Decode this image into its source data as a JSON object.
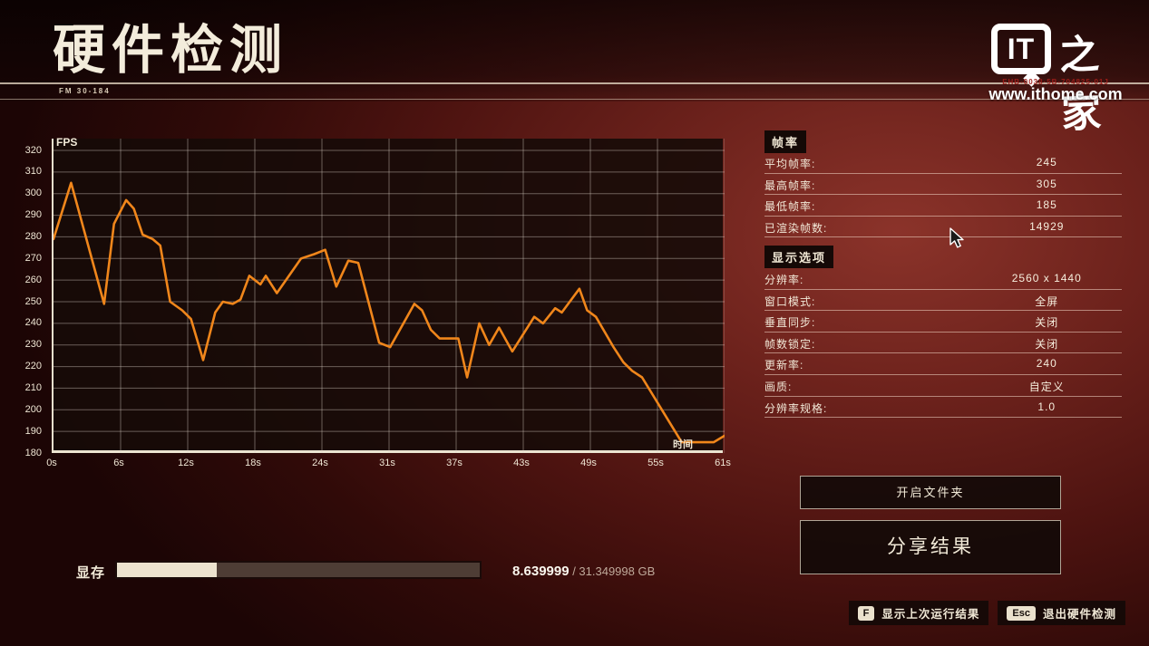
{
  "header": {
    "title": "硬件检测",
    "doc_code": "FM 30-184",
    "logo": {
      "badge": "IT",
      "suffix": "之家",
      "code": "EHB-0038·5B-704825-01J",
      "site": "www.ithome.com"
    }
  },
  "chart_data": {
    "type": "line",
    "ylabel": "FPS",
    "xlabel": "时间",
    "ylim": [
      180,
      320
    ],
    "x_range_seconds": [
      0,
      61
    ],
    "grid": true,
    "line_color": "#f0861b",
    "y_ticks": [
      320,
      310,
      300,
      290,
      280,
      270,
      260,
      250,
      240,
      230,
      220,
      210,
      200,
      190,
      180
    ],
    "x_ticks": [
      "0s",
      "6s",
      "12s",
      "18s",
      "24s",
      "31s",
      "37s",
      "43s",
      "49s",
      "55s",
      "61s"
    ],
    "series": [
      {
        "name": "FPS",
        "points": [
          [
            0,
            279
          ],
          [
            1.6,
            305
          ],
          [
            4.6,
            249
          ],
          [
            5.5,
            286
          ],
          [
            6.6,
            297
          ],
          [
            7.3,
            293
          ],
          [
            8.1,
            281
          ],
          [
            9,
            279
          ],
          [
            9.7,
            276
          ],
          [
            10.6,
            250
          ],
          [
            11.7,
            246
          ],
          [
            12.5,
            242
          ],
          [
            13.6,
            223
          ],
          [
            14.7,
            245
          ],
          [
            15.4,
            250
          ],
          [
            16.3,
            249
          ],
          [
            17,
            251
          ],
          [
            17.8,
            262
          ],
          [
            18.8,
            258
          ],
          [
            19.3,
            262
          ],
          [
            20.3,
            254
          ],
          [
            22.5,
            270
          ],
          [
            23.7,
            272
          ],
          [
            24.7,
            274
          ],
          [
            25.7,
            257
          ],
          [
            26.8,
            269
          ],
          [
            27.7,
            268
          ],
          [
            29.6,
            231
          ],
          [
            30.6,
            229
          ],
          [
            32.8,
            249
          ],
          [
            33.5,
            246
          ],
          [
            34.3,
            237
          ],
          [
            35.1,
            233
          ],
          [
            36.8,
            233
          ],
          [
            37.6,
            215
          ],
          [
            38.7,
            240
          ],
          [
            39.6,
            230
          ],
          [
            40.5,
            238
          ],
          [
            41.7,
            227
          ],
          [
            43.7,
            243
          ],
          [
            44.5,
            240
          ],
          [
            45.6,
            247
          ],
          [
            46.2,
            245
          ],
          [
            47.8,
            256
          ],
          [
            48.5,
            246
          ],
          [
            49.3,
            243
          ],
          [
            50.1,
            236
          ],
          [
            50.9,
            229
          ],
          [
            51.8,
            222
          ],
          [
            52.6,
            218
          ],
          [
            53.5,
            215
          ],
          [
            55.9,
            195
          ],
          [
            57.1,
            185
          ],
          [
            60,
            185
          ],
          [
            61,
            188
          ]
        ]
      }
    ]
  },
  "frame_stats": {
    "section_title": "帧率",
    "rows": [
      {
        "label": "平均帧率:",
        "value": "245"
      },
      {
        "label": "最高帧率:",
        "value": "305"
      },
      {
        "label": "最低帧率:",
        "value": "185"
      },
      {
        "label": "已渲染帧数:",
        "value": "14929"
      }
    ]
  },
  "display_options": {
    "section_title": "显示选项",
    "rows": [
      {
        "label": "分辨率:",
        "value": "2560 x 1440"
      },
      {
        "label": "窗口模式:",
        "value": "全屏"
      },
      {
        "label": "垂直同步:",
        "value": "关闭"
      },
      {
        "label": "帧数锁定:",
        "value": "关闭"
      },
      {
        "label": "更新率:",
        "value": "240"
      },
      {
        "label": "画质:",
        "value": "自定义"
      },
      {
        "label": "分辨率规格:",
        "value": "1.0"
      }
    ]
  },
  "buttons": {
    "open_folder": "开启文件夹",
    "share_results": "分享结果"
  },
  "vram": {
    "label": "显存",
    "used": "8.639999",
    "total_suffix": " / 31.349998 GB",
    "fill_percent": 27.56
  },
  "hotkeys": [
    {
      "key": "F",
      "label": "显示上次运行结果"
    },
    {
      "key": "Esc",
      "label": "退出硬件检测"
    }
  ]
}
